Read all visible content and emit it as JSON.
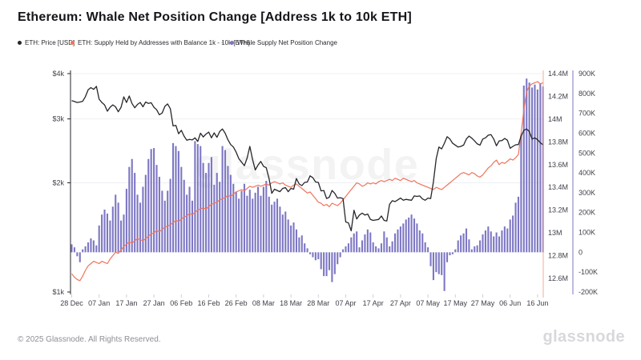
{
  "page": {
    "title": "Ethereum: Whale Net Position Change [Address 1k to 10k ETH]",
    "watermark": "glassnode"
  },
  "legend": {
    "items": [
      {
        "label": "ETH: Price [USD]",
        "color": "#26262c"
      },
      {
        "label": "ETH: Supply Held by Addresses with Balance 1k - 10k [ETH]",
        "color": "#f0745c"
      },
      {
        "label": "Whale Supply Net Position Change",
        "color": "#7d77c4"
      }
    ],
    "separator": "-"
  },
  "footer": {
    "copyright": "© 2025 Glassnode. All Rights Reserved.",
    "brand": "glassnode"
  },
  "colors": {
    "background": "#ffffff",
    "title_text": "#15151a",
    "price_line": "#26262c",
    "supply_line": "#f0745c",
    "npc_bars": "#7d77c4",
    "grid_line": "#eef0f4",
    "axis_text": "#41414b",
    "left_axis_line": "#26262c",
    "supply_axis_line": "#f5ab97",
    "npc_axis_line": "#7d77c4",
    "x_tick": "#cfcfd6",
    "watermark": "rgba(24,24,32,0.05)"
  },
  "chart_data": {
    "type": "mixed",
    "title": "Ethereum: Whale Net Position Change [Address 1k to 10k ETH]",
    "x_axis": {
      "unit": "date",
      "total_days": 173,
      "tick_labels": [
        "28 Dec",
        "07 Jan",
        "17 Jan",
        "27 Jan",
        "06 Feb",
        "16 Feb",
        "26 Feb",
        "08 Mar",
        "18 Mar",
        "28 Mar",
        "07 Apr",
        "17 Apr",
        "27 Apr",
        "07 May",
        "17 May",
        "27 May",
        "06 Jun",
        "16 Jun"
      ],
      "tick_day_indices": [
        0,
        10,
        20,
        30,
        40,
        50,
        60,
        70,
        80,
        90,
        100,
        110,
        120,
        130,
        140,
        150,
        160,
        170
      ]
    },
    "axes": {
      "price": {
        "position": "left",
        "scale": "log",
        "min": 1000,
        "max": 4000,
        "tick_labels": [
          "$4k",
          "$3k",
          "$2k",
          "$1k"
        ],
        "tick_values": [
          4000,
          3000,
          2000,
          1000
        ],
        "grid": true
      },
      "supply": {
        "position": "right",
        "scale": "linear",
        "unit": "M ETH",
        "tick_labels": [
          "14.4M",
          "14.2M",
          "14M",
          "13.8M",
          "13.6M",
          "13.4M",
          "13.2M",
          "13M",
          "12.8M",
          "12.6M"
        ],
        "tick_values": [
          14.4,
          14.2,
          14.0,
          13.8,
          13.6,
          13.4,
          13.2,
          13.0,
          12.8,
          12.6
        ],
        "grid": false
      },
      "npc": {
        "position": "far-right",
        "scale": "linear",
        "unit": "K ETH",
        "tick_labels": [
          "900K",
          "800K",
          "700K",
          "600K",
          "500K",
          "400K",
          "300K",
          "200K",
          "100K",
          "0",
          "-100K",
          "-200K"
        ],
        "tick_values": [
          900,
          800,
          700,
          600,
          500,
          400,
          300,
          200,
          100,
          0,
          -100,
          -200
        ],
        "grid": false
      }
    },
    "legend_position": "top-left",
    "series": [
      {
        "name": "ETH: Price [USD]",
        "type": "line",
        "axis": "price",
        "color": "#26262c",
        "values": [
          3370,
          3350,
          3330,
          3340,
          3355,
          3455,
          3610,
          3660,
          3620,
          3690,
          3400,
          3330,
          3280,
          3150,
          3230,
          3280,
          3240,
          3140,
          3230,
          3450,
          3330,
          3470,
          3310,
          3220,
          3290,
          3330,
          3240,
          3340,
          3310,
          3325,
          3230,
          3180,
          3080,
          3115,
          3250,
          3300,
          3200,
          2870,
          2880,
          2730,
          2790,
          2690,
          2620,
          2635,
          2625,
          2660,
          2600,
          2740,
          2675,
          2725,
          2760,
          2660,
          2745,
          2670,
          2770,
          2815,
          2740,
          2630,
          2550,
          2510,
          2430,
          2330,
          2280,
          2230,
          2340,
          2520,
          2320,
          2170,
          2240,
          2290,
          2220,
          2200,
          2060,
          1870,
          1920,
          1905,
          1890,
          1930,
          1940,
          1890,
          1930,
          1920,
          2055,
          1985,
          1965,
          2005,
          2010,
          2090,
          2065,
          2010,
          2005,
          1900,
          1905,
          1810,
          1825,
          1905,
          1870,
          1815,
          1820,
          1810,
          1560,
          1550,
          1475,
          1680,
          1590,
          1630,
          1650,
          1630,
          1640,
          1585,
          1575,
          1580,
          1585,
          1620,
          1575,
          1570,
          1745,
          1785,
          1775,
          1795,
          1815,
          1790,
          1800,
          1795,
          1790,
          1840,
          1835,
          1840,
          1805,
          1790,
          1815,
          1810,
          2010,
          2330,
          2510,
          2480,
          2570,
          2680,
          2640,
          2570,
          2540,
          2510,
          2520,
          2540,
          2640,
          2690,
          2655,
          2610,
          2560,
          2540,
          2640,
          2660,
          2705,
          2715,
          2640,
          2530,
          2610,
          2615,
          2650,
          2620,
          2490,
          2520,
          2545,
          2550,
          2690,
          2790,
          2815,
          2770,
          2640,
          2660,
          2630,
          2580,
          2545
        ]
      },
      {
        "name": "ETH: Supply Held by Addresses with Balance 1k - 10k [ETH]",
        "type": "line",
        "axis": "supply",
        "color": "#f0745c",
        "values": [
          12.64,
          12.61,
          12.59,
          12.58,
          12.62,
          12.67,
          12.71,
          12.73,
          12.75,
          12.74,
          12.73,
          12.75,
          12.74,
          12.73,
          12.77,
          12.8,
          12.83,
          12.82,
          12.85,
          12.88,
          12.9,
          12.92,
          12.91,
          12.93,
          12.95,
          12.94,
          12.93,
          12.95,
          12.97,
          12.99,
          13.0,
          13.02,
          13.01,
          13.03,
          13.05,
          13.06,
          13.07,
          13.09,
          13.11,
          13.1,
          13.12,
          13.14,
          13.15,
          13.17,
          13.16,
          13.18,
          13.2,
          13.21,
          13.22,
          13.21,
          13.23,
          13.25,
          13.26,
          13.27,
          13.29,
          13.3,
          13.31,
          13.33,
          13.32,
          13.34,
          13.36,
          13.37,
          13.38,
          13.37,
          13.39,
          13.41,
          13.4,
          13.41,
          13.42,
          13.41,
          13.42,
          13.43,
          13.42,
          13.44,
          13.45,
          13.44,
          13.43,
          13.44,
          13.42,
          13.41,
          13.4,
          13.42,
          13.43,
          13.41,
          13.39,
          13.37,
          13.35,
          13.36,
          13.33,
          13.3,
          13.27,
          13.26,
          13.24,
          13.25,
          13.23,
          13.26,
          13.25,
          13.24,
          13.26,
          13.29,
          13.32,
          13.35,
          13.38,
          13.41,
          13.44,
          13.43,
          13.41,
          13.42,
          13.44,
          13.43,
          13.44,
          13.43,
          13.45,
          13.46,
          13.45,
          13.46,
          13.47,
          13.46,
          13.48,
          13.47,
          13.46,
          13.48,
          13.47,
          13.46,
          13.45,
          13.46,
          13.44,
          13.43,
          13.42,
          13.41,
          13.4,
          13.39,
          13.38,
          13.4,
          13.39,
          13.38,
          13.4,
          13.42,
          13.44,
          13.46,
          13.48,
          13.5,
          13.52,
          13.53,
          13.52,
          13.51,
          13.53,
          13.52,
          13.5,
          13.49,
          13.51,
          13.54,
          13.57,
          13.59,
          13.62,
          13.64,
          13.6,
          13.62,
          13.61,
          13.63,
          13.65,
          13.64,
          13.66,
          13.69,
          13.88,
          14.08,
          14.24,
          14.29,
          14.31,
          14.32,
          14.33,
          14.31,
          14.32
        ]
      },
      {
        "name": "Whale Supply Net Position Change",
        "type": "bar",
        "axis": "npc",
        "color": "#7d77c4",
        "values": [
          40,
          25,
          -20,
          -50,
          15,
          30,
          50,
          70,
          60,
          35,
          135,
          190,
          215,
          195,
          160,
          230,
          290,
          250,
          160,
          190,
          320,
          430,
          470,
          400,
          290,
          250,
          330,
          390,
          470,
          520,
          525,
          440,
          380,
          310,
          260,
          310,
          370,
          550,
          535,
          510,
          430,
          365,
          290,
          330,
          260,
          560,
          545,
          535,
          450,
          400,
          450,
          480,
          340,
          400,
          355,
          535,
          515,
          435,
          390,
          345,
          305,
          270,
          310,
          345,
          285,
          315,
          270,
          300,
          330,
          285,
          330,
          360,
          280,
          240,
          255,
          270,
          230,
          190,
          205,
          165,
          135,
          150,
          115,
          75,
          85,
          45,
          20,
          -10,
          -25,
          -40,
          -35,
          -85,
          -120,
          -120,
          -90,
          -150,
          -110,
          -60,
          -25,
          15,
          30,
          45,
          75,
          95,
          105,
          25,
          60,
          90,
          115,
          100,
          50,
          30,
          20,
          45,
          105,
          75,
          30,
          55,
          95,
          115,
          130,
          145,
          165,
          175,
          190,
          170,
          145,
          110,
          95,
          50,
          25,
          -70,
          -140,
          -100,
          -110,
          -115,
          -195,
          -50,
          -15,
          -10,
          15,
          60,
          85,
          95,
          120,
          65,
          15,
          30,
          35,
          60,
          90,
          110,
          130,
          105,
          80,
          100,
          80,
          110,
          130,
          120,
          165,
          185,
          250,
          280,
          590,
          840,
          875,
          855,
          830,
          845,
          820,
          850,
          835
        ]
      }
    ]
  }
}
